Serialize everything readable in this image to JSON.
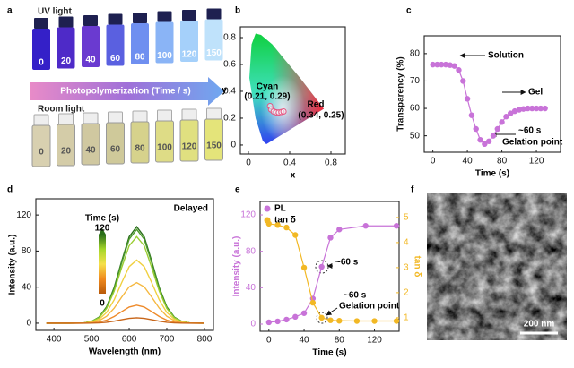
{
  "panel_labels": [
    "a",
    "b",
    "c",
    "d",
    "e",
    "f"
  ],
  "photos": {
    "uv_label": "UV light",
    "room_label": "Room light",
    "arrow_text": "Photopolymerization (Time / s)",
    "vial_labels": [
      0,
      20,
      40,
      60,
      80,
      100,
      120,
      150
    ]
  },
  "sem": {
    "scale_bar": "200 nm"
  },
  "chart_data": [
    {
      "type": "scatter",
      "x_label": "x",
      "y_label": "y",
      "xlim": [
        -0.078,
        0.939
      ],
      "ylim": [
        -0.067,
        0.88
      ],
      "xticks": [
        0,
        0.4,
        0.8
      ],
      "yticks": [
        0,
        0.2,
        0.4,
        0.6,
        0.8
      ],
      "series": [
        {
          "color": "#e75480",
          "x": [
            0.21,
            0.22,
            0.245,
            0.27,
            0.295,
            0.32,
            0.34
          ],
          "values": [
            0.29,
            0.265,
            0.25,
            0.243,
            0.242,
            0.246,
            0.25
          ]
        }
      ],
      "annotations": [
        "Cyan",
        "(0.21, 0.29)",
        "Red",
        "(0.34, 0.25)"
      ]
    },
    {
      "type": "line",
      "markers": true,
      "x_label": "Time (s)",
      "y_label": "Transparency (%)",
      "xlim": [
        -10,
        148
      ],
      "ylim": [
        44,
        86.5
      ],
      "xticks": [
        0,
        40,
        80,
        120
      ],
      "yticks": [
        50,
        60,
        70,
        80
      ],
      "series": [
        {
          "color": "#c873d8",
          "x": [
            0,
            5,
            10,
            15,
            20,
            25,
            30,
            35,
            40,
            45,
            50,
            55,
            60,
            65,
            70,
            75,
            80,
            85,
            90,
            95,
            100,
            105,
            110,
            115,
            120,
            125,
            130
          ],
          "values": [
            76,
            76,
            76,
            76,
            75.8,
            75.5,
            74,
            70,
            63.5,
            57.5,
            52.5,
            48.5,
            47,
            48,
            50,
            52.5,
            55,
            57,
            58.2,
            59,
            59.5,
            59.8,
            60,
            60,
            60,
            60,
            60
          ]
        }
      ],
      "annotations": [
        "Solution",
        "Gel",
        "~60 s",
        "Gelation point"
      ]
    },
    {
      "type": "line",
      "title": "Delayed",
      "x_label": "Wavelength (nm)",
      "y_label": "Intensity (a.u.)",
      "xlim": [
        352,
        824
      ],
      "ylim": [
        -8,
        138
      ],
      "xticks": [
        400,
        500,
        600,
        700,
        800
      ],
      "yticks": [
        0,
        40,
        80,
        120
      ],
      "x": [
        380,
        400,
        420,
        440,
        460,
        480,
        500,
        520,
        540,
        560,
        580,
        600,
        620,
        640,
        660,
        680,
        700,
        720,
        740,
        760,
        780,
        800
      ],
      "series": [
        {
          "color": "#2a6e1a",
          "values": [
            0,
            0,
            0,
            0,
            0.1,
            0.4,
            2.0,
            6.7,
            18.2,
            39.5,
            68.7,
            95.8,
            107,
            95.8,
            68.7,
            39.5,
            18.2,
            6.7,
            2.0,
            0.4,
            0.1,
            0
          ]
        },
        {
          "color": "#4c9a2a",
          "values": [
            0,
            0,
            0,
            0,
            0.1,
            0.4,
            2.0,
            6.6,
            17.7,
            38.4,
            66.8,
            93.1,
            104,
            93.1,
            66.8,
            38.4,
            17.7,
            6.6,
            2.0,
            0.4,
            0.1,
            0
          ]
        },
        {
          "color": "#9acd32",
          "values": [
            0,
            0,
            0,
            0,
            0.1,
            0.4,
            1.8,
            6.0,
            16.3,
            35.4,
            61.6,
            85.9,
            96,
            85.9,
            61.6,
            35.4,
            16.3,
            6.0,
            1.8,
            0.4,
            0.1,
            0
          ]
        },
        {
          "color": "#f0d040",
          "values": [
            0,
            0,
            0,
            0,
            0.1,
            0.3,
            1.3,
            4.4,
            11.9,
            25.8,
            44.9,
            62.7,
            70,
            62.7,
            44.9,
            25.8,
            11.9,
            4.4,
            1.3,
            0.3,
            0.1,
            0
          ]
        },
        {
          "color": "#f5b840",
          "values": [
            0,
            0,
            0,
            0,
            0,
            0.2,
            0.9,
            2.8,
            7.7,
            16.6,
            28.9,
            40.3,
            45,
            40.3,
            28.9,
            16.6,
            7.7,
            2.8,
            0.9,
            0.2,
            0,
            0
          ]
        },
        {
          "color": "#ee8a2a",
          "values": [
            0,
            0,
            0,
            0,
            0,
            0.1,
            0.4,
            1.3,
            3.4,
            7.4,
            12.8,
            17.9,
            20,
            17.9,
            12.8,
            7.4,
            3.4,
            1.3,
            0.4,
            0.1,
            0,
            0
          ]
        },
        {
          "color": "#c8661a",
          "values": [
            0,
            0,
            0,
            0,
            0,
            0,
            0.1,
            0.4,
            1.0,
            2.2,
            3.9,
            5.4,
            6,
            5.4,
            3.9,
            2.2,
            1.0,
            0.4,
            0.1,
            0,
            0,
            0
          ]
        }
      ],
      "colorbar": {
        "label": "Time (s)",
        "ticks": [
          120,
          0
        ],
        "colors": [
          "#2a6e1a",
          "#a5d62a",
          "#f5e04a",
          "#f08a1e",
          "#b85a0a"
        ]
      }
    },
    {
      "type": "line",
      "markers": true,
      "legend": "upper left",
      "x_label": "Time (s)",
      "y_label": "Intensity (a.u.)",
      "y2_label": "tan δ",
      "xlim": [
        -10,
        148
      ],
      "ylim": [
        -7.9,
        134.8
      ],
      "y2lim": [
        0.46,
        5.64
      ],
      "xticks": [
        0,
        40,
        80,
        120
      ],
      "yticks": [
        0,
        40,
        80,
        120
      ],
      "y2ticks": [
        1,
        2,
        3,
        4,
        5
      ],
      "series": [
        {
          "name": "PL",
          "color": "#c873d8",
          "x": [
            0,
            10,
            20,
            30,
            40,
            50,
            60,
            70,
            80,
            110,
            145
          ],
          "values": [
            2,
            3,
            5,
            8,
            12,
            28,
            63,
            95,
            104,
            108,
            108
          ]
        },
        {
          "name": "tan δ",
          "color": "#f2b824",
          "axis": "y2",
          "x": [
            0,
            10,
            20,
            30,
            40,
            50,
            60,
            70,
            80,
            100,
            120,
            145
          ],
          "values": [
            4.75,
            4.7,
            4.6,
            4.3,
            3.0,
            1.6,
            1.0,
            0.9,
            0.88,
            0.87,
            0.87,
            0.87
          ]
        }
      ],
      "annotations": [
        "~60 s",
        "~60 s",
        "Gelation point"
      ]
    }
  ]
}
